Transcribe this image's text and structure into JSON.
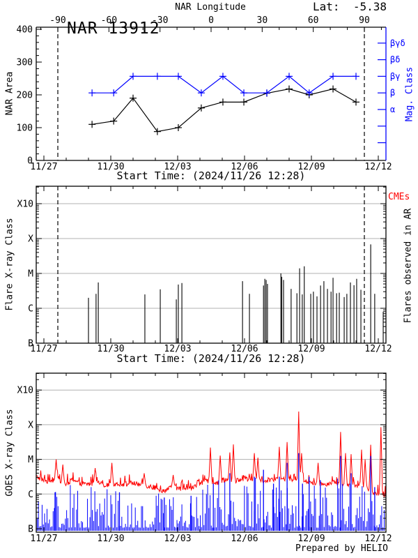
{
  "header": {
    "title": "NAR 13912",
    "lat_label": "Lat:  -5.38",
    "credit": "Prepared by HELIO"
  },
  "colors": {
    "blue": "#0000ff",
    "red": "#ff0000",
    "grid": "#b0b0b0",
    "black": "#000000"
  },
  "chart_data": [
    {
      "id": "nar_area_mag",
      "type": "line",
      "title": "NAR 13912",
      "lat": -5.38,
      "top_axis": {
        "label": "NAR Longitude",
        "major_ticks": [
          -90,
          -60,
          -30,
          0,
          30,
          60,
          90
        ],
        "minor_step_deg": 10,
        "range_deg": [
          -100,
          100
        ]
      },
      "x_axis": {
        "labels": [
          "11/27",
          "11/30",
          "12/03",
          "12/06",
          "12/09",
          "12/12"
        ],
        "label_days": [
          0,
          3,
          6,
          9,
          12,
          15
        ],
        "minor_step_days": 1,
        "range_days": [
          -0.34,
          15.34
        ],
        "caption": "Start Time: (2024/11/26 12:28)"
      },
      "y_axis": {
        "label": "NAR Area",
        "ticks": [
          0,
          100,
          200,
          300,
          400
        ],
        "minor_step": 20,
        "range": [
          0,
          406
        ]
      },
      "right_axis": {
        "label": "Mag. Class",
        "labels": [
          "βγδ",
          "βδ",
          "βγ",
          "β",
          "α"
        ],
        "values": [
          5,
          4,
          3,
          2,
          1
        ],
        "extra_tick_values": [
          0,
          -1
        ]
      },
      "dashed_lines_days": [
        0.625,
        14.375
      ],
      "series": {
        "days": [
          2.16,
          3.13,
          4.0,
          5.09,
          6.03,
          7.06,
          8.03,
          8.97,
          10.0,
          11.0,
          11.9,
          12.97,
          14.0
        ],
        "area": [
          110,
          120,
          190,
          88,
          100,
          160,
          178,
          178,
          205,
          218,
          200,
          218,
          178
        ],
        "mag_class": [
          "β",
          "β",
          "βγ",
          "βγ",
          "βγ",
          "β",
          "βγ",
          "β",
          "β",
          "βγ",
          "β",
          "βγ",
          "βγ"
        ]
      }
    },
    {
      "id": "flares_in_ar",
      "type": "bar",
      "y_axis": {
        "label": "Flare X-ray Class",
        "ticks": [
          "X10",
          "X",
          "M",
          "C",
          "B"
        ],
        "tick_values": [
          4,
          3,
          2,
          1,
          0
        ],
        "log": true,
        "grid_at": [
          1,
          2,
          3,
          4
        ]
      },
      "x_axis": {
        "labels": [
          "11/27",
          "11/30",
          "12/03",
          "12/06",
          "12/09",
          "12/12"
        ],
        "label_days": [
          0,
          3,
          6,
          9,
          12,
          15
        ],
        "minor_step_days": 1,
        "caption": "Start Time: (2024/11/26 12:28)"
      },
      "right_labels": {
        "cmes": "CMEs",
        "flares_observed": "Flares observed in AR"
      },
      "dashed_lines_days": [
        0.625,
        14.375
      ],
      "flares": [
        [
          2.0,
          "C2.0"
        ],
        [
          2.34,
          "C2.6"
        ],
        [
          2.44,
          "C5.5"
        ],
        [
          4.53,
          "C2.5"
        ],
        [
          5.22,
          "C3.5"
        ],
        [
          5.94,
          "C1.8"
        ],
        [
          6.03,
          "C4.8"
        ],
        [
          6.19,
          "C5.3"
        ],
        [
          8.91,
          "C6.0"
        ],
        [
          9.22,
          "C2.6"
        ],
        [
          9.85,
          "C4.5"
        ],
        [
          9.91,
          "C7.0"
        ],
        [
          9.97,
          "C6.5"
        ],
        [
          10.03,
          "C5.0"
        ],
        [
          10.63,
          "M1.0"
        ],
        [
          10.67,
          "C8.0"
        ],
        [
          10.75,
          "C6.5"
        ],
        [
          11.09,
          "C3.6"
        ],
        [
          11.35,
          "C2.7"
        ],
        [
          11.47,
          "M1.4"
        ],
        [
          11.59,
          "C2.5"
        ],
        [
          11.68,
          "M1.6"
        ],
        [
          11.97,
          "C2.6"
        ],
        [
          12.09,
          "C3.0"
        ],
        [
          12.25,
          "C2.2"
        ],
        [
          12.41,
          "C4.5"
        ],
        [
          12.56,
          "C6.0"
        ],
        [
          12.72,
          "C3.6"
        ],
        [
          12.88,
          "C3.0"
        ],
        [
          12.97,
          "C7.5"
        ],
        [
          13.13,
          "C2.7"
        ],
        [
          13.25,
          "C2.8"
        ],
        [
          13.47,
          "C2.1"
        ],
        [
          13.59,
          "C2.6"
        ],
        [
          13.75,
          "C5.5"
        ],
        [
          13.91,
          "C4.6"
        ],
        [
          14.03,
          "C7.0"
        ],
        [
          14.22,
          "C3.4"
        ],
        [
          14.66,
          "M6.8"
        ],
        [
          14.84,
          "C2.6"
        ],
        [
          15.22,
          "B8.0"
        ]
      ]
    },
    {
      "id": "goes_xray",
      "type": "line",
      "y_axis": {
        "label": "GOES X-ray Class",
        "ticks": [
          "X10",
          "X",
          "M",
          "C",
          "B"
        ],
        "tick_values": [
          4,
          3,
          2,
          1,
          0
        ],
        "log": true,
        "grid_at": [
          1,
          2,
          3,
          4
        ]
      },
      "x_axis": {
        "labels": [
          "11/27",
          "11/30",
          "12/03",
          "12/06",
          "12/09",
          "12/12"
        ],
        "label_days": [
          0,
          3,
          6,
          9,
          12,
          15
        ],
        "minor_step_days": 1
      },
      "series": [
        {
          "name": "long-channel",
          "color": "#ff0000",
          "baseline": [
            [
              -0.35,
              1.5
            ],
            [
              0.2,
              1.35
            ],
            [
              0.6,
              1.45
            ],
            [
              1.0,
              1.28
            ],
            [
              1.3,
              1.42
            ],
            [
              1.6,
              1.3
            ],
            [
              2.0,
              1.28
            ],
            [
              2.4,
              1.32
            ],
            [
              2.8,
              1.25
            ],
            [
              3.2,
              1.3
            ],
            [
              3.6,
              1.28
            ],
            [
              4.0,
              1.32
            ],
            [
              4.4,
              1.26
            ],
            [
              4.8,
              1.22
            ],
            [
              5.2,
              1.08
            ],
            [
              5.5,
              1.12
            ],
            [
              5.8,
              1.22
            ],
            [
              6.1,
              1.15
            ],
            [
              6.4,
              1.12
            ],
            [
              6.8,
              1.22
            ],
            [
              7.1,
              1.32
            ],
            [
              7.4,
              1.38
            ],
            [
              7.8,
              1.32
            ],
            [
              8.2,
              1.42
            ],
            [
              8.6,
              1.38
            ],
            [
              9.0,
              1.45
            ],
            [
              9.4,
              1.42
            ],
            [
              9.8,
              1.38
            ],
            [
              10.2,
              1.42
            ],
            [
              10.6,
              1.45
            ],
            [
              11.0,
              1.42
            ],
            [
              11.4,
              1.45
            ],
            [
              11.8,
              1.35
            ],
            [
              12.2,
              1.32
            ],
            [
              12.6,
              1.28
            ],
            [
              13.0,
              1.35
            ],
            [
              13.4,
              1.3
            ],
            [
              13.8,
              1.28
            ],
            [
              14.2,
              1.22
            ],
            [
              14.6,
              1.12
            ],
            [
              14.9,
              1.02
            ],
            [
              15.34,
              0.98
            ]
          ],
          "spikes": [
            [
              0.55,
              2.0
            ],
            [
              0.85,
              1.85
            ],
            [
              2.3,
              1.75
            ],
            [
              3.05,
              1.9
            ],
            [
              4.5,
              1.6
            ],
            [
              5.8,
              1.55
            ],
            [
              7.47,
              2.34
            ],
            [
              7.91,
              2.11
            ],
            [
              8.34,
              2.2
            ],
            [
              8.5,
              2.43
            ],
            [
              9.44,
              2.18
            ],
            [
              9.6,
              2.05
            ],
            [
              10.56,
              2.36
            ],
            [
              10.91,
              2.5
            ],
            [
              11.43,
              3.38
            ],
            [
              11.56,
              2.18
            ],
            [
              12.3,
              1.9
            ],
            [
              13.31,
              2.79
            ],
            [
              13.53,
              2.18
            ],
            [
              13.78,
              2.15
            ],
            [
              14.25,
              2.28
            ],
            [
              14.41,
              2.0
            ],
            [
              14.66,
              2.42
            ],
            [
              15.12,
              2.93
            ]
          ]
        },
        {
          "name": "short-channel",
          "color": "#0000ff",
          "baseline": [
            [
              -0.35,
              0.35
            ],
            [
              0.5,
              0.5
            ],
            [
              1.0,
              0.25
            ],
            [
              1.5,
              0.3
            ],
            [
              2.0,
              0.35
            ],
            [
              2.5,
              0.4
            ],
            [
              3.0,
              0.4
            ],
            [
              3.5,
              0.35
            ],
            [
              4.0,
              0.25
            ],
            [
              4.5,
              0.3
            ],
            [
              5.0,
              0.3
            ],
            [
              5.5,
              0.35
            ],
            [
              6.0,
              0.4
            ],
            [
              6.5,
              0.5
            ],
            [
              7.0,
              0.6
            ],
            [
              7.5,
              0.65
            ],
            [
              8.0,
              0.7
            ],
            [
              8.5,
              0.65
            ],
            [
              9.0,
              0.7
            ],
            [
              9.5,
              0.75
            ],
            [
              10.0,
              0.7
            ],
            [
              10.5,
              0.75
            ],
            [
              11.0,
              0.7
            ],
            [
              11.5,
              0.65
            ],
            [
              12.0,
              0.6
            ],
            [
              12.5,
              0.65
            ],
            [
              13.0,
              0.7
            ],
            [
              13.5,
              0.6
            ],
            [
              14.0,
              0.55
            ],
            [
              14.5,
              0.45
            ],
            [
              15.34,
              0.3
            ]
          ],
          "spikes": [
            [
              0.5,
              1.05
            ],
            [
              3.39,
              1.05
            ],
            [
              5.4,
              0.9
            ],
            [
              6.6,
              0.95
            ],
            [
              7.6,
              1.3
            ],
            [
              8.34,
              1.6
            ],
            [
              9.44,
              1.5
            ],
            [
              9.85,
              1.7
            ],
            [
              10.3,
              1.3
            ],
            [
              10.56,
              1.5
            ],
            [
              10.91,
              1.9
            ],
            [
              11.43,
              2.18
            ],
            [
              11.6,
              1.3
            ],
            [
              11.9,
              1.5
            ],
            [
              12.4,
              1.4
            ],
            [
              13.31,
              2.1
            ],
            [
              13.78,
              1.6
            ],
            [
              14.66,
              2.1
            ],
            [
              14.84,
              1.2
            ]
          ]
        }
      ]
    }
  ]
}
